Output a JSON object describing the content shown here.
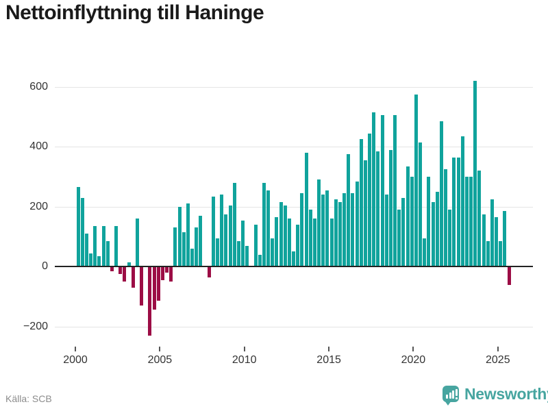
{
  "title": "Nettoinflyttning till Haninge",
  "source": {
    "label": "Källa: SCB"
  },
  "branding": {
    "logo_text": "Newsworthy",
    "logo_icon": "bar-chart-speech-bubble"
  },
  "colors": {
    "positive_bar": "#10a39c",
    "negative_bar": "#9c0d45",
    "zero_line": "#222222",
    "gridline": "#e4e4e4",
    "axis_text": "#333333",
    "title_text": "#1a1a1a",
    "source_text": "#8c8c8c",
    "brand_teal": "#47a5a0"
  },
  "chart_data": {
    "type": "bar",
    "title": "Nettoinflyttning till Haninge",
    "frequency": "quarterly",
    "start_period": "2000-Q1",
    "end_period": "2025-Q3",
    "baseline": 0,
    "grid": true,
    "ylim": [
      -250,
      660
    ],
    "y_ticks": [
      600,
      400,
      200,
      0,
      -200
    ],
    "y_gridlines": [
      600,
      400,
      200,
      -200
    ],
    "x_tick_labels": [
      "2000",
      "2005",
      "2010",
      "2015",
      "2020",
      "2025"
    ],
    "x_tick_years": [
      2000,
      2005,
      2010,
      2015,
      2020,
      2025
    ],
    "values": [
      265,
      230,
      110,
      45,
      135,
      35,
      135,
      85,
      -15,
      135,
      -25,
      -50,
      15,
      -70,
      160,
      -130,
      0,
      -230,
      -143,
      -114,
      -45,
      -20,
      -50,
      130,
      200,
      115,
      210,
      60,
      130,
      170,
      0,
      -35,
      235,
      95,
      240,
      175,
      205,
      280,
      85,
      155,
      70,
      0,
      140,
      40,
      280,
      255,
      95,
      165,
      215,
      205,
      160,
      50,
      140,
      245,
      380,
      190,
      160,
      290,
      240,
      255,
      160,
      225,
      215,
      245,
      375,
      245,
      285,
      425,
      355,
      445,
      515,
      385,
      505,
      240,
      390,
      505,
      190,
      230,
      335,
      300,
      575,
      415,
      95,
      300,
      215,
      250,
      485,
      325,
      190,
      365,
      365,
      435,
      300,
      300,
      620,
      320,
      175,
      85,
      225,
      165,
      85,
      185,
      -62
    ]
  }
}
